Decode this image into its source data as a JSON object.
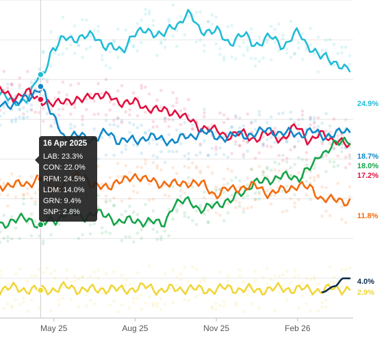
{
  "chart_data": {
    "type": "line",
    "title": "",
    "xlabel": "",
    "ylabel": "",
    "x_ticks": [
      "May 25",
      "Aug 25",
      "Nov 25",
      "Feb 26"
    ],
    "ylim": [
      0,
      32
    ],
    "grid": true,
    "legend": "none",
    "series": [
      {
        "name": "RFM",
        "color": "#20bcd6",
        "final_label": "24.9%",
        "points": [
          [
            "2025-03-01",
            22.5
          ],
          [
            "2025-03-15",
            21.8
          ],
          [
            "2025-04-01",
            22.0
          ],
          [
            "2025-04-16",
            24.5
          ],
          [
            "2025-05-01",
            27.0
          ],
          [
            "2025-05-15",
            28.3
          ],
          [
            "2025-06-01",
            28.1
          ],
          [
            "2025-06-15",
            28.5
          ],
          [
            "2025-07-01",
            27.2
          ],
          [
            "2025-07-15",
            27.0
          ],
          [
            "2025-08-01",
            28.5
          ],
          [
            "2025-08-15",
            29.0
          ],
          [
            "2025-09-01",
            28.4
          ],
          [
            "2025-09-15",
            29.5
          ],
          [
            "2025-09-30",
            30.5
          ],
          [
            "2025-10-15",
            29.0
          ],
          [
            "2025-11-01",
            28.8
          ],
          [
            "2025-11-15",
            27.8
          ],
          [
            "2025-12-01",
            28.4
          ],
          [
            "2025-12-15",
            27.6
          ],
          [
            "2026-01-01",
            28.2
          ],
          [
            "2026-01-15",
            27.5
          ],
          [
            "2026-02-01",
            28.6
          ],
          [
            "2026-02-15",
            27.3
          ],
          [
            "2026-03-01",
            26.2
          ],
          [
            "2026-03-15",
            25.8
          ],
          [
            "2026-04-01",
            24.9
          ]
        ]
      },
      {
        "name": "CON",
        "color": "#e2103f",
        "final_label": "17.2%",
        "points": [
          [
            "2025-03-01",
            22.8
          ],
          [
            "2025-03-15",
            22.3
          ],
          [
            "2025-04-01",
            22.6
          ],
          [
            "2025-04-16",
            22.0
          ],
          [
            "2025-05-01",
            21.4
          ],
          [
            "2025-05-15",
            22.0
          ],
          [
            "2025-06-01",
            21.8
          ],
          [
            "2025-06-15",
            22.6
          ],
          [
            "2025-07-01",
            22.2
          ],
          [
            "2025-07-15",
            21.8
          ],
          [
            "2025-08-01",
            21.6
          ],
          [
            "2025-08-15",
            21.2
          ],
          [
            "2025-09-01",
            20.8
          ],
          [
            "2025-09-15",
            20.8
          ],
          [
            "2025-10-01",
            19.9
          ],
          [
            "2025-10-15",
            19.2
          ],
          [
            "2025-11-01",
            18.8
          ],
          [
            "2025-11-15",
            18.4
          ],
          [
            "2025-12-01",
            18.5
          ],
          [
            "2025-12-15",
            18.1
          ],
          [
            "2026-01-01",
            18.5
          ],
          [
            "2026-01-15",
            18.1
          ],
          [
            "2026-02-01",
            19.2
          ],
          [
            "2026-02-15",
            17.9
          ],
          [
            "2026-03-01",
            18.4
          ],
          [
            "2026-03-15",
            18.0
          ],
          [
            "2026-04-01",
            17.2
          ]
        ]
      },
      {
        "name": "LAB",
        "color": "#0f87c9",
        "final_label": "18.7%",
        "points": [
          [
            "2025-03-01",
            21.4
          ],
          [
            "2025-03-15",
            21.6
          ],
          [
            "2025-04-01",
            22.0
          ],
          [
            "2025-04-16",
            23.3
          ],
          [
            "2025-05-01",
            20.0
          ],
          [
            "2025-05-15",
            18.2
          ],
          [
            "2025-06-01",
            18.3
          ],
          [
            "2025-06-15",
            18.0
          ],
          [
            "2025-07-01",
            18.6
          ],
          [
            "2025-07-15",
            17.9
          ],
          [
            "2025-08-01",
            17.8
          ],
          [
            "2025-08-15",
            18.3
          ],
          [
            "2025-09-01",
            17.9
          ],
          [
            "2025-09-15",
            17.9
          ],
          [
            "2025-10-01",
            18.2
          ],
          [
            "2025-10-15",
            18.8
          ],
          [
            "2025-11-01",
            18.2
          ],
          [
            "2025-11-15",
            18.3
          ],
          [
            "2025-12-01",
            18.4
          ],
          [
            "2025-12-15",
            18.6
          ],
          [
            "2026-01-01",
            18.9
          ],
          [
            "2026-01-15",
            18.6
          ],
          [
            "2026-02-01",
            18.5
          ],
          [
            "2026-02-15",
            18.8
          ],
          [
            "2026-03-01",
            18.3
          ],
          [
            "2026-03-15",
            18.6
          ],
          [
            "2026-04-01",
            18.7
          ]
        ]
      },
      {
        "name": "GRN",
        "color": "#16a34a",
        "final_label": "18.0%",
        "points": [
          [
            "2025-03-01",
            9.4
          ],
          [
            "2025-03-15",
            9.8
          ],
          [
            "2025-04-01",
            10.0
          ],
          [
            "2025-04-16",
            9.4
          ],
          [
            "2025-05-01",
            9.8
          ],
          [
            "2025-05-15",
            10.6
          ],
          [
            "2025-06-01",
            10.2
          ],
          [
            "2025-06-15",
            10.5
          ],
          [
            "2025-07-01",
            10.3
          ],
          [
            "2025-07-15",
            9.6
          ],
          [
            "2025-08-01",
            9.9
          ],
          [
            "2025-08-15",
            9.6
          ],
          [
            "2025-09-01",
            9.6
          ],
          [
            "2025-09-15",
            11.3
          ],
          [
            "2025-10-01",
            12.0
          ],
          [
            "2025-10-15",
            10.7
          ],
          [
            "2025-11-01",
            11.6
          ],
          [
            "2025-11-15",
            11.6
          ],
          [
            "2025-12-01",
            12.8
          ],
          [
            "2025-12-15",
            13.5
          ],
          [
            "2026-01-01",
            14.0
          ],
          [
            "2026-01-15",
            14.2
          ],
          [
            "2026-02-01",
            14.2
          ],
          [
            "2026-02-15",
            15.0
          ],
          [
            "2026-03-01",
            16.7
          ],
          [
            "2026-03-15",
            17.4
          ],
          [
            "2026-04-01",
            18.0
          ]
        ]
      },
      {
        "name": "LDM",
        "color": "#f26b0f",
        "final_label": "11.8%",
        "points": [
          [
            "2025-03-01",
            13.4
          ],
          [
            "2025-03-15",
            13.3
          ],
          [
            "2025-04-01",
            13.6
          ],
          [
            "2025-04-16",
            14.0
          ],
          [
            "2025-05-01",
            13.2
          ],
          [
            "2025-05-15",
            13.5
          ],
          [
            "2025-06-01",
            14.7
          ],
          [
            "2025-06-15",
            13.1
          ],
          [
            "2025-07-01",
            13.4
          ],
          [
            "2025-07-15",
            13.6
          ],
          [
            "2025-08-01",
            14.4
          ],
          [
            "2025-08-15",
            13.8
          ],
          [
            "2025-09-01",
            13.6
          ],
          [
            "2025-09-15",
            13.4
          ],
          [
            "2025-10-01",
            13.7
          ],
          [
            "2025-10-15",
            13.4
          ],
          [
            "2025-11-01",
            12.5
          ],
          [
            "2025-11-15",
            12.9
          ],
          [
            "2025-12-01",
            13.2
          ],
          [
            "2025-12-15",
            13.2
          ],
          [
            "2026-01-01",
            12.6
          ],
          [
            "2026-01-15",
            12.8
          ],
          [
            "2026-02-01",
            13.4
          ],
          [
            "2026-02-15",
            13.0
          ],
          [
            "2026-03-01",
            12.1
          ],
          [
            "2026-03-15",
            11.8
          ],
          [
            "2026-04-01",
            11.8
          ]
        ]
      },
      {
        "name": "SNP",
        "color": "#f0d63a",
        "final_label": "2.9%",
        "points": [
          [
            "2025-03-01",
            2.9
          ],
          [
            "2025-03-15",
            3.0
          ],
          [
            "2025-04-01",
            2.9
          ],
          [
            "2025-04-16",
            2.8
          ],
          [
            "2025-05-01",
            2.9
          ],
          [
            "2025-05-15",
            3.1
          ],
          [
            "2025-06-01",
            2.9
          ],
          [
            "2025-06-15",
            2.8
          ],
          [
            "2025-07-01",
            3.0
          ],
          [
            "2025-07-15",
            2.8
          ],
          [
            "2025-08-01",
            3.0
          ],
          [
            "2025-08-15",
            3.1
          ],
          [
            "2025-09-01",
            2.8
          ],
          [
            "2025-09-15",
            2.9
          ],
          [
            "2025-10-01",
            3.0
          ],
          [
            "2025-10-15",
            2.8
          ],
          [
            "2025-11-01",
            2.9
          ],
          [
            "2025-11-15",
            3.0
          ],
          [
            "2025-12-01",
            2.9
          ],
          [
            "2025-12-15",
            2.8
          ],
          [
            "2026-01-01",
            2.9
          ],
          [
            "2026-01-15",
            3.0
          ],
          [
            "2026-02-01",
            2.9
          ],
          [
            "2026-02-15",
            2.9
          ],
          [
            "2026-03-01",
            2.8
          ],
          [
            "2026-03-15",
            3.0
          ],
          [
            "2026-04-01",
            2.9
          ]
        ]
      },
      {
        "name": "",
        "color": "#0b2a4a",
        "final_label": "4.0%",
        "points": [
          [
            "2026-03-01",
            2.6
          ],
          [
            "2026-03-15",
            3.2
          ],
          [
            "2026-03-25",
            4.0
          ],
          [
            "2026-04-01",
            4.0
          ]
        ]
      }
    ],
    "tooltip": {
      "date": "16 Apr 2025",
      "rows": [
        "LAB: 23.3%",
        "CON: 22.0%",
        "RFM: 24.5%",
        "LDM: 14.0%",
        "GRN: 9.4%",
        "SNP: 2.8%"
      ]
    },
    "x_domain": [
      "2025-03-01",
      "2026-04-01"
    ]
  }
}
